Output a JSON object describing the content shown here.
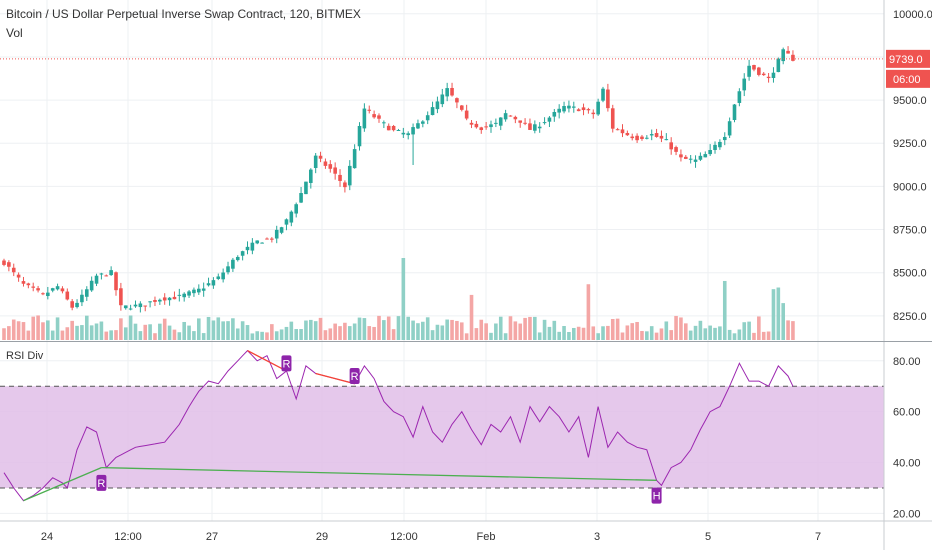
{
  "header": {
    "symbol_title": "Bitcoin / US Dollar Perpetual Inverse Swap Contract, 120, BITMEX",
    "volume_label": "Vol",
    "rsi_label": "RSI Div"
  },
  "colors": {
    "up": "#26a69a",
    "down": "#ef5350",
    "volume_up": "#8fd0c6",
    "volume_down": "#f4a6a5",
    "rsi_line": "#9c27b0",
    "rsi_band": "#e1bee7",
    "bull_line": "#4caf50",
    "bear_line": "#f44336",
    "marker": "#8e24aa",
    "price_line": "#ef5350",
    "grid": "#eef0f3"
  },
  "chart_data": [
    {
      "type": "candlestick",
      "title": "Bitcoin / US Dollar Perpetual Inverse Swap Contract, 120, BITMEX",
      "x_tick_labels": [
        "24",
        "12:00",
        "27",
        "29",
        "12:00",
        "Feb",
        "3",
        "5",
        "7"
      ],
      "y_ticks": [
        8250,
        8500,
        8750,
        9000,
        9250,
        9500,
        9750,
        10000
      ],
      "y_tick_labels": [
        "8250.0",
        "8500.0",
        "8750.0",
        "9000.0",
        "9250.0",
        "9500.0",
        "9750.0",
        "10000.0"
      ],
      "ylim": [
        8110,
        10080
      ],
      "last_price": 9739.0,
      "last_price_label": "9739.0",
      "countdown_label": "06:00",
      "close_anchors": [
        [
          0,
          8560
        ],
        [
          4,
          8430
        ],
        [
          8,
          8370
        ],
        [
          11,
          8420
        ],
        [
          14,
          8300
        ],
        [
          16,
          8360
        ],
        [
          19,
          8480
        ],
        [
          22,
          8500
        ],
        [
          24,
          8300
        ],
        [
          28,
          8310
        ],
        [
          32,
          8350
        ],
        [
          36,
          8360
        ],
        [
          40,
          8400
        ],
        [
          44,
          8470
        ],
        [
          48,
          8600
        ],
        [
          52,
          8680
        ],
        [
          55,
          8700
        ],
        [
          58,
          8800
        ],
        [
          61,
          8960
        ],
        [
          64,
          9170
        ],
        [
          67,
          9100
        ],
        [
          70,
          9000
        ],
        [
          74,
          9450
        ],
        [
          77,
          9380
        ],
        [
          80,
          9320
        ],
        [
          83,
          9300
        ],
        [
          86,
          9390
        ],
        [
          88,
          9450
        ],
        [
          91,
          9560
        ],
        [
          93,
          9480
        ],
        [
          95,
          9380
        ],
        [
          98,
          9340
        ],
        [
          101,
          9360
        ],
        [
          103,
          9420
        ],
        [
          106,
          9380
        ],
        [
          108,
          9330
        ],
        [
          110,
          9360
        ],
        [
          113,
          9420
        ],
        [
          115,
          9460
        ],
        [
          118,
          9450
        ],
        [
          121,
          9420
        ],
        [
          123,
          9560
        ],
        [
          125,
          9340
        ],
        [
          128,
          9300
        ],
        [
          130,
          9280
        ],
        [
          133,
          9300
        ],
        [
          136,
          9260
        ],
        [
          139,
          9160
        ],
        [
          142,
          9150
        ],
        [
          145,
          9200
        ],
        [
          148,
          9300
        ],
        [
          150,
          9480
        ],
        [
          153,
          9700
        ],
        [
          155,
          9660
        ],
        [
          157,
          9620
        ],
        [
          160,
          9780
        ],
        [
          162,
          9739
        ]
      ]
    },
    {
      "type": "bar",
      "name": "Vol",
      "spikes": [
        [
          82,
          1.0
        ],
        [
          96,
          0.55
        ],
        [
          120,
          0.68
        ],
        [
          148,
          0.72
        ],
        [
          158,
          0.62
        ],
        [
          159,
          0.64
        ],
        [
          160,
          0.45
        ]
      ]
    },
    {
      "type": "line",
      "name": "RSI Div",
      "y_ticks": [
        20,
        40,
        60,
        80
      ],
      "y_tick_labels": [
        "20.00",
        "40.00",
        "60.00",
        "80.00"
      ],
      "ylim": [
        17,
        87
      ],
      "band": [
        30,
        70
      ],
      "rsi_anchors": [
        [
          0,
          36
        ],
        [
          2,
          30
        ],
        [
          4,
          25
        ],
        [
          6,
          27
        ],
        [
          8,
          30
        ],
        [
          10,
          34
        ],
        [
          12,
          32
        ],
        [
          13,
          30
        ],
        [
          15,
          45
        ],
        [
          17,
          54
        ],
        [
          19,
          52
        ],
        [
          21,
          38
        ],
        [
          23,
          42
        ],
        [
          25,
          44
        ],
        [
          27,
          46
        ],
        [
          30,
          47
        ],
        [
          33,
          48
        ],
        [
          36,
          55
        ],
        [
          38,
          62
        ],
        [
          40,
          68
        ],
        [
          42,
          72
        ],
        [
          44,
          71
        ],
        [
          46,
          76
        ],
        [
          48,
          80
        ],
        [
          50,
          84
        ],
        [
          52,
          80
        ],
        [
          54,
          82
        ],
        [
          56,
          73
        ],
        [
          58,
          76
        ],
        [
          60,
          65
        ],
        [
          62,
          78
        ],
        [
          64,
          75
        ],
        [
          66,
          74
        ],
        [
          68,
          73
        ],
        [
          70,
          72
        ],
        [
          72,
          71
        ],
        [
          74,
          78
        ],
        [
          76,
          73
        ],
        [
          78,
          64
        ],
        [
          80,
          60
        ],
        [
          82,
          58
        ],
        [
          84,
          50
        ],
        [
          86,
          62
        ],
        [
          88,
          52
        ],
        [
          90,
          48
        ],
        [
          92,
          55
        ],
        [
          94,
          60
        ],
        [
          96,
          53
        ],
        [
          98,
          47
        ],
        [
          100,
          55
        ],
        [
          102,
          52
        ],
        [
          104,
          58
        ],
        [
          106,
          48
        ],
        [
          108,
          62
        ],
        [
          110,
          56
        ],
        [
          112,
          62
        ],
        [
          114,
          58
        ],
        [
          116,
          52
        ],
        [
          118,
          58
        ],
        [
          120,
          42
        ],
        [
          122,
          62
        ],
        [
          124,
          46
        ],
        [
          126,
          52
        ],
        [
          128,
          48
        ],
        [
          130,
          46
        ],
        [
          132,
          45
        ],
        [
          134,
          33
        ],
        [
          135,
          31
        ],
        [
          137,
          38
        ],
        [
          139,
          40
        ],
        [
          141,
          45
        ],
        [
          143,
          53
        ],
        [
          145,
          60
        ],
        [
          147,
          62
        ],
        [
          149,
          70
        ],
        [
          151,
          79
        ],
        [
          153,
          72
        ],
        [
          155,
          72
        ],
        [
          157,
          70
        ],
        [
          159,
          78
        ],
        [
          161,
          74
        ],
        [
          162,
          70
        ]
      ],
      "divergence_lines": [
        {
          "kind": "bull",
          "from": [
            4,
            25
          ],
          "to": [
            20,
            38
          ]
        },
        {
          "kind": "bull",
          "from": [
            20,
            38
          ],
          "to": [
            134,
            33
          ]
        },
        {
          "kind": "bear",
          "from": [
            50,
            84
          ],
          "to": [
            58,
            76
          ]
        },
        {
          "kind": "bear",
          "from": [
            64,
            75
          ],
          "to": [
            72,
            71
          ]
        }
      ],
      "markers": [
        {
          "label": "R",
          "at": [
            20,
            32
          ],
          "pos": "below"
        },
        {
          "label": "R",
          "at": [
            58,
            79
          ],
          "pos": "above"
        },
        {
          "label": "R",
          "at": [
            72,
            74
          ],
          "pos": "above"
        },
        {
          "label": "H",
          "at": [
            134,
            27
          ],
          "pos": "below"
        }
      ]
    }
  ]
}
